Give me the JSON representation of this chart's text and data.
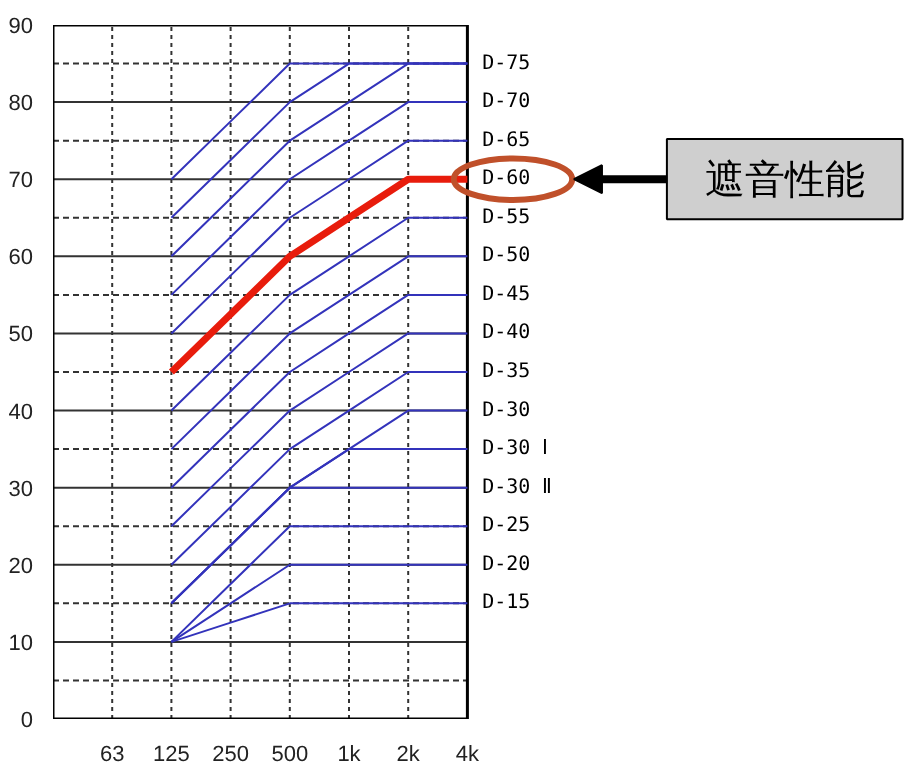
{
  "chart_data": {
    "type": "line",
    "categories": [
      "63",
      "125",
      "250",
      "500",
      "1k",
      "2k",
      "4k"
    ],
    "ylim": [
      0,
      90
    ],
    "yticks": [
      0,
      {
        "value": 5,
        "label": null
      },
      10,
      {
        "value": 15,
        "label": null
      },
      20,
      {
        "value": 25,
        "label": null
      },
      30,
      {
        "value": 35,
        "label": null
      },
      40,
      {
        "value": 45,
        "label": null
      },
      50,
      {
        "value": 55,
        "label": null
      },
      60,
      {
        "value": 65,
        "label": null
      },
      70,
      {
        "value": 75,
        "label": null
      },
      80,
      {
        "value": 85,
        "label": null
      },
      90
    ],
    "grid": true,
    "annotations": [
      "遮音性能"
    ],
    "series": [
      {
        "color": "#3333bb",
        "values": [
          null,
          70,
          77.5,
          85,
          85,
          85,
          85
        ]
      },
      {
        "color": "#3333bb",
        "values": [
          null,
          65,
          72.5,
          80,
          85,
          85,
          85
        ]
      },
      {
        "name": "D-75",
        "color": "#3333bb",
        "values": [
          null,
          60,
          67.5,
          75,
          80,
          85,
          85
        ]
      },
      {
        "name": "D-70",
        "color": "#3333bb",
        "values": [
          null,
          55,
          62.5,
          70,
          75,
          80,
          80
        ]
      },
      {
        "name": "D-65",
        "color": "#3333bb",
        "values": [
          null,
          50,
          57.5,
          65,
          70,
          75,
          75
        ]
      },
      {
        "name": "D-60",
        "color": "#e81c0c",
        "values": [
          null,
          45,
          52.5,
          60,
          65,
          70,
          70
        ]
      },
      {
        "name": "D-55",
        "color": "#3333bb",
        "values": [
          null,
          40,
          47.5,
          55,
          60,
          65,
          65
        ]
      },
      {
        "name": "D-50",
        "color": "#3333bb",
        "values": [
          null,
          35,
          42.5,
          50,
          55,
          60,
          60
        ]
      },
      {
        "name": "D-45",
        "color": "#3333bb",
        "values": [
          null,
          30,
          37.5,
          45,
          50,
          55,
          55
        ]
      },
      {
        "name": "D-40",
        "color": "#3333bb",
        "values": [
          null,
          25,
          32.5,
          40,
          45,
          50,
          50
        ]
      },
      {
        "name": "D-35",
        "color": "#3333bb",
        "values": [
          null,
          20,
          27.5,
          35,
          40,
          45,
          45
        ]
      },
      {
        "name": "D-30",
        "color": "#3333bb",
        "values": [
          null,
          15,
          22.5,
          30,
          35,
          40,
          40
        ]
      },
      {
        "name": "D-30 Ⅰ",
        "color": "#3333bb",
        "values": [
          null,
          15,
          22.5,
          30,
          35,
          35,
          35
        ]
      },
      {
        "name": "D-30 Ⅱ",
        "color": "#3333bb",
        "values": [
          null,
          15,
          22.5,
          30,
          30,
          30,
          30
        ]
      },
      {
        "name": "D-25",
        "color": "#3333bb",
        "values": [
          null,
          10,
          17.5,
          25,
          25,
          25,
          25
        ]
      },
      {
        "name": "D-20",
        "color": "#3333bb",
        "values": [
          null,
          10,
          15,
          20,
          20,
          20,
          20
        ]
      },
      {
        "name": "D-15",
        "color": "#3333bb",
        "values": [
          null,
          10,
          12.5,
          15,
          15,
          15,
          15
        ]
      }
    ]
  }
}
